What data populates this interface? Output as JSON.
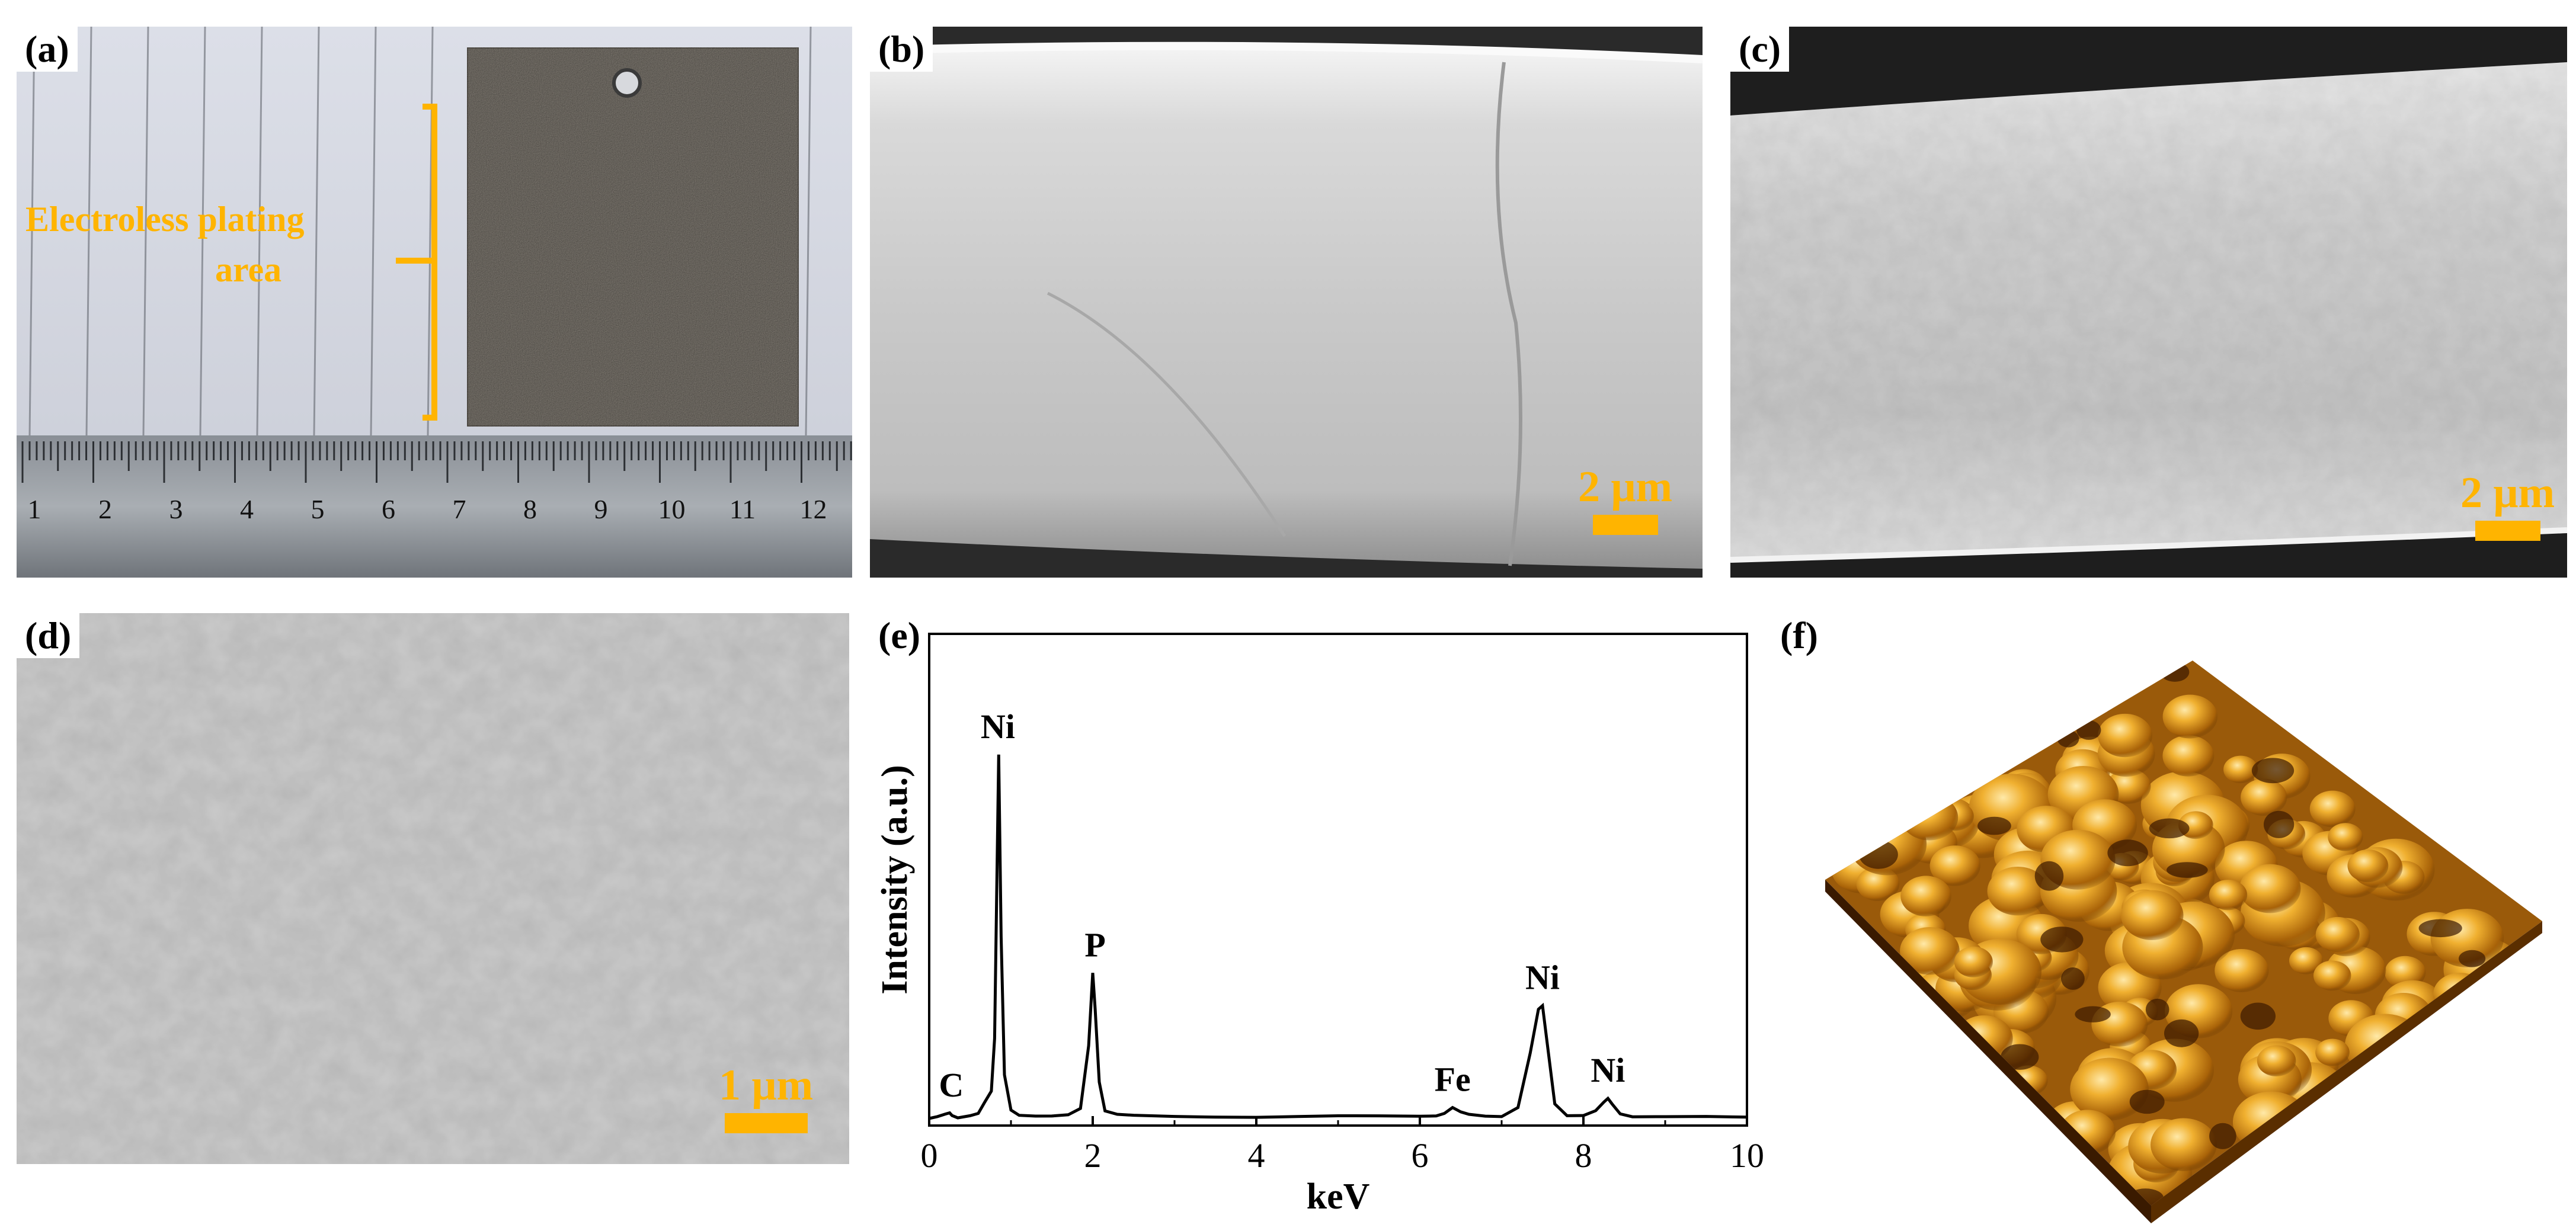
{
  "figure": {
    "panels": {
      "a": {
        "label": "(a)",
        "annotation_line1": "Electroless plating",
        "annotation_line2": "area",
        "ruler_numbers": [
          "1",
          "2",
          "3",
          "4",
          "5",
          "6",
          "7",
          "8",
          "9",
          "10",
          "11",
          "12"
        ],
        "colors": {
          "annotation": "#ffb400"
        }
      },
      "b": {
        "label": "(b)",
        "scale": "2 μm"
      },
      "c": {
        "label": "(c)",
        "scale": "2 μm"
      },
      "d": {
        "label": "(d)",
        "scale": "1 μm"
      },
      "e": {
        "label": "(e)"
      },
      "f": {
        "label": "(f)"
      }
    }
  },
  "chart_data": {
    "type": "line",
    "xlabel": "keV",
    "ylabel": "Intensity (a.u.)",
    "xlim": [
      0,
      10
    ],
    "xticks": [
      0,
      2,
      4,
      6,
      8,
      10
    ],
    "y_ticks_shown": false,
    "series": [
      {
        "x": [
          0,
          0.1,
          0.2,
          0.25,
          0.28,
          0.35,
          0.5,
          0.6,
          0.68,
          0.72,
          0.76,
          0.8,
          0.85,
          0.88,
          0.92,
          1.0,
          1.1,
          1.3,
          1.5,
          1.7,
          1.85,
          1.95,
          2.0,
          2.03,
          2.08,
          2.15,
          2.3,
          2.5,
          3.0,
          3.5,
          4.0,
          4.5,
          5.0,
          5.5,
          6.0,
          6.2,
          6.3,
          6.4,
          6.5,
          6.6,
          6.8,
          7.0,
          7.2,
          7.35,
          7.45,
          7.5,
          7.55,
          7.65,
          7.8,
          8.0,
          8.15,
          8.25,
          8.3,
          8.35,
          8.45,
          8.6,
          9.0,
          9.5,
          10.0
        ],
        "y": [
          0,
          0.3,
          1.0,
          1.5,
          1.0,
          0.4,
          0.8,
          1.2,
          4.5,
          6.0,
          7.5,
          22.0,
          100.0,
          50.0,
          12.0,
          2.2,
          1.0,
          0.9,
          0.8,
          0.9,
          2.5,
          20.0,
          40.0,
          30.0,
          10.0,
          2.0,
          0.9,
          0.7,
          0.6,
          0.6,
          0.5,
          0.5,
          0.5,
          0.5,
          0.6,
          0.9,
          1.6,
          3.0,
          1.6,
          0.9,
          0.6,
          0.7,
          3.0,
          18.0,
          30.0,
          31.0,
          22.0,
          4.0,
          1.0,
          0.9,
          2.0,
          4.5,
          5.5,
          4.0,
          1.5,
          0.6,
          0.4,
          0.3,
          0.2
        ]
      }
    ],
    "annotations": [
      {
        "text": "Ni",
        "x": 0.84,
        "y": 100
      },
      {
        "text": "P",
        "x": 2.03,
        "y": 40
      },
      {
        "text": "C",
        "x": 0.27,
        "y": 1.5
      },
      {
        "text": "Fe",
        "x": 6.4,
        "y": 3
      },
      {
        "text": "Ni",
        "x": 7.5,
        "y": 31
      },
      {
        "text": "Ni",
        "x": 8.3,
        "y": 5.5
      }
    ]
  }
}
